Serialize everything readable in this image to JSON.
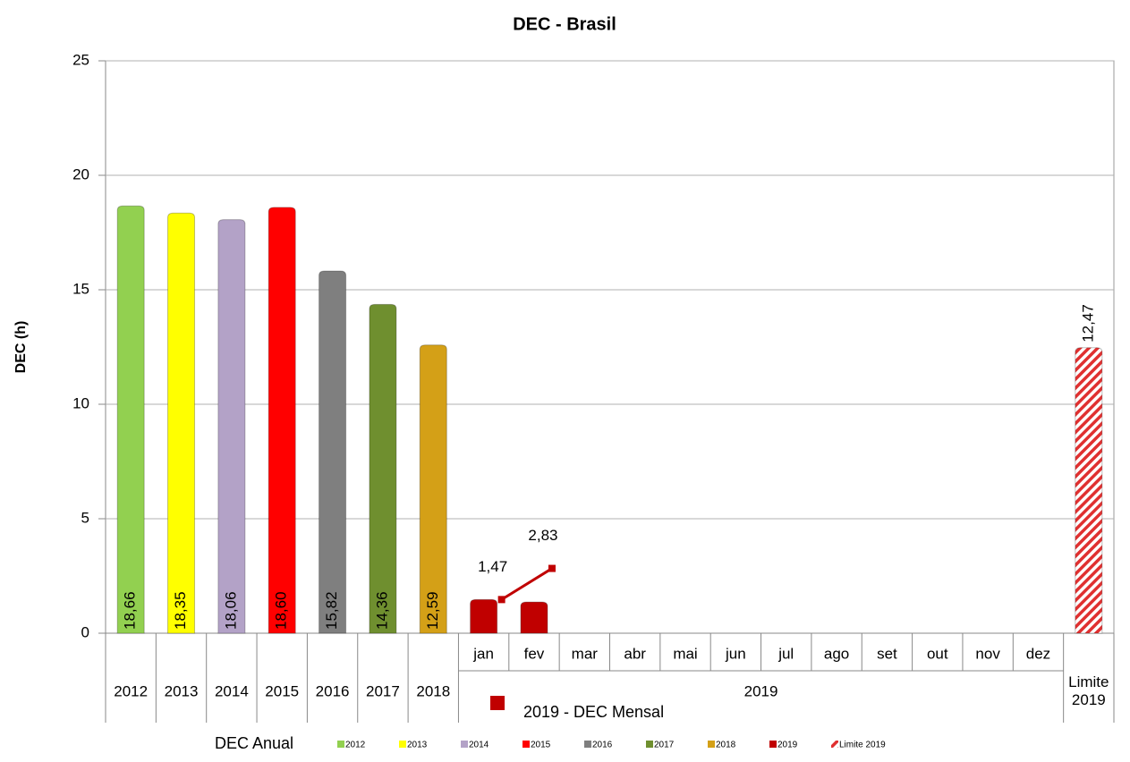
{
  "chart_data": {
    "type": "bar",
    "title": "DEC - Brasil",
    "y_label": "DEC (h)",
    "ylim": [
      0,
      25
    ],
    "yticks": [
      0,
      5,
      10,
      15,
      20,
      25
    ],
    "grid": true,
    "groups": [
      {
        "label": "2012",
        "categories": [
          null
        ]
      },
      {
        "label": "2013",
        "categories": [
          null
        ]
      },
      {
        "label": "2014",
        "categories": [
          null
        ]
      },
      {
        "label": "2015",
        "categories": [
          null
        ]
      },
      {
        "label": "2016",
        "categories": [
          null
        ]
      },
      {
        "label": "2017",
        "categories": [
          null
        ]
      },
      {
        "label": "2018",
        "categories": [
          null
        ]
      },
      {
        "label": "2019",
        "categories": [
          "jan",
          "fev",
          "mar",
          "abr",
          "mai",
          "jun",
          "jul",
          "ago",
          "set",
          "out",
          "nov",
          "dez"
        ]
      },
      {
        "label": "Limite 2019",
        "categories": [
          null
        ]
      }
    ],
    "legend_title": "DEC Anual",
    "legend": "bottom",
    "series": [
      {
        "name": "2012",
        "color": "#92d050",
        "label_position": "inside_base",
        "values": [
          18.66,
          null,
          null,
          null,
          null,
          null,
          null,
          null,
          null,
          null,
          null,
          null,
          null,
          null,
          null,
          null,
          null,
          null,
          null,
          null
        ],
        "value_labels": [
          "18,66",
          null,
          null,
          null,
          null,
          null,
          null,
          null,
          null,
          null,
          null,
          null,
          null,
          null,
          null,
          null,
          null,
          null,
          null,
          null
        ]
      },
      {
        "name": "2013",
        "color": "#ffff00",
        "label_position": "inside_base",
        "values": [
          null,
          18.35,
          null,
          null,
          null,
          null,
          null,
          null,
          null,
          null,
          null,
          null,
          null,
          null,
          null,
          null,
          null,
          null,
          null,
          null
        ],
        "value_labels": [
          null,
          "18,35",
          null,
          null,
          null,
          null,
          null,
          null,
          null,
          null,
          null,
          null,
          null,
          null,
          null,
          null,
          null,
          null,
          null,
          null
        ]
      },
      {
        "name": "2014",
        "color": "#b3a2c7",
        "label_position": "inside_base",
        "values": [
          null,
          null,
          18.06,
          null,
          null,
          null,
          null,
          null,
          null,
          null,
          null,
          null,
          null,
          null,
          null,
          null,
          null,
          null,
          null,
          null
        ],
        "value_labels": [
          null,
          null,
          "18,06",
          null,
          null,
          null,
          null,
          null,
          null,
          null,
          null,
          null,
          null,
          null,
          null,
          null,
          null,
          null,
          null,
          null
        ]
      },
      {
        "name": "2015",
        "color": "#ff0000",
        "label_position": "inside_base",
        "values": [
          null,
          null,
          null,
          18.6,
          null,
          null,
          null,
          null,
          null,
          null,
          null,
          null,
          null,
          null,
          null,
          null,
          null,
          null,
          null,
          null
        ],
        "value_labels": [
          null,
          null,
          null,
          "18,60",
          null,
          null,
          null,
          null,
          null,
          null,
          null,
          null,
          null,
          null,
          null,
          null,
          null,
          null,
          null,
          null
        ]
      },
      {
        "name": "2016",
        "color": "#7f7f7f",
        "label_position": "inside_base",
        "values": [
          null,
          null,
          null,
          null,
          15.82,
          null,
          null,
          null,
          null,
          null,
          null,
          null,
          null,
          null,
          null,
          null,
          null,
          null,
          null,
          null
        ],
        "value_labels": [
          null,
          null,
          null,
          null,
          "15,82",
          null,
          null,
          null,
          null,
          null,
          null,
          null,
          null,
          null,
          null,
          null,
          null,
          null,
          null,
          null
        ]
      },
      {
        "name": "2017",
        "color": "#6f8f2f",
        "label_position": "inside_base",
        "values": [
          null,
          null,
          null,
          null,
          null,
          14.36,
          null,
          null,
          null,
          null,
          null,
          null,
          null,
          null,
          null,
          null,
          null,
          null,
          null,
          null
        ],
        "value_labels": [
          null,
          null,
          null,
          null,
          null,
          "14,36",
          null,
          null,
          null,
          null,
          null,
          null,
          null,
          null,
          null,
          null,
          null,
          null,
          null,
          null
        ]
      },
      {
        "name": "2018",
        "color": "#d4a017",
        "label_position": "inside_base",
        "values": [
          null,
          null,
          null,
          null,
          null,
          null,
          12.59,
          null,
          null,
          null,
          null,
          null,
          null,
          null,
          null,
          null,
          null,
          null,
          null,
          null
        ],
        "value_labels": [
          null,
          null,
          null,
          null,
          null,
          null,
          "12,59",
          null,
          null,
          null,
          null,
          null,
          null,
          null,
          null,
          null,
          null,
          null,
          null,
          null
        ]
      },
      {
        "name": "2019",
        "color": "#c00000",
        "values": [
          null,
          null,
          null,
          null,
          null,
          null,
          null,
          1.47,
          1.36,
          null,
          null,
          null,
          null,
          null,
          null,
          null,
          null,
          null,
          null,
          null
        ]
      },
      {
        "name": "Limite 2019",
        "color": "#e03030",
        "pattern": "stripes",
        "label_position": "outside_end",
        "values": [
          null,
          null,
          null,
          null,
          null,
          null,
          null,
          null,
          null,
          null,
          null,
          null,
          null,
          null,
          null,
          null,
          null,
          null,
          null,
          12.47
        ],
        "value_labels": [
          null,
          null,
          null,
          null,
          null,
          null,
          null,
          null,
          null,
          null,
          null,
          null,
          null,
          null,
          null,
          null,
          null,
          null,
          null,
          "12,47"
        ]
      },
      {
        "name": "2019 - DEC Mensal",
        "type": "line",
        "color": "#c00000",
        "values": [
          null,
          null,
          null,
          null,
          null,
          null,
          null,
          1.47,
          2.83,
          null,
          null,
          null,
          null,
          null,
          null,
          null,
          null,
          null,
          null,
          null
        ],
        "value_labels": [
          null,
          null,
          null,
          null,
          null,
          null,
          null,
          "1,47",
          "2,83",
          null,
          null,
          null,
          null,
          null,
          null,
          null,
          null,
          null,
          null,
          null
        ]
      }
    ]
  }
}
